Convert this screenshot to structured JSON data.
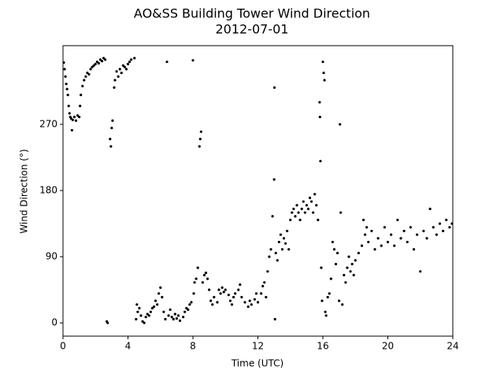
{
  "chart_data": {
    "type": "scatter",
    "title": "AO&SS Building Tower Wind Direction",
    "subtitle": "2012-07-01",
    "x_label": "Time (UTC)",
    "y_label": "Wind Direction (°)",
    "color": "#000000",
    "xlim": [
      0,
      24
    ],
    "ylim": [
      -18,
      377
    ],
    "xticks": [
      0,
      4,
      8,
      12,
      16,
      20,
      24
    ],
    "yticks": [
      0,
      90,
      180,
      270
    ],
    "x": [
      0.05,
      0.1,
      0.15,
      0.2,
      0.25,
      0.3,
      0.35,
      0.4,
      0.45,
      0.5,
      0.55,
      0.6,
      0.7,
      0.8,
      0.9,
      1.0,
      1.05,
      1.1,
      1.2,
      1.3,
      1.4,
      1.5,
      1.6,
      1.7,
      1.8,
      1.9,
      2.0,
      2.1,
      2.2,
      2.3,
      2.4,
      2.5,
      2.6,
      2.7,
      2.75,
      2.9,
      2.95,
      3.0,
      3.05,
      3.15,
      3.2,
      3.3,
      3.4,
      3.5,
      3.6,
      3.7,
      3.8,
      3.9,
      4.0,
      4.1,
      4.2,
      4.4,
      4.5,
      4.55,
      4.6,
      4.7,
      4.8,
      4.9,
      5.0,
      5.1,
      5.2,
      5.3,
      5.4,
      5.5,
      5.6,
      5.7,
      5.8,
      5.9,
      6.0,
      6.1,
      6.2,
      6.3,
      6.4,
      6.5,
      6.6,
      6.7,
      6.8,
      6.9,
      7.0,
      7.1,
      7.2,
      7.4,
      7.5,
      7.6,
      7.7,
      7.8,
      7.9,
      8.0,
      8.05,
      8.1,
      8.2,
      8.3,
      8.4,
      8.45,
      8.5,
      8.6,
      8.7,
      8.8,
      8.9,
      9.0,
      9.1,
      9.2,
      9.3,
      9.5,
      9.6,
      9.7,
      9.8,
      9.9,
      10.0,
      10.2,
      10.3,
      10.4,
      10.5,
      10.6,
      10.8,
      10.9,
      11.0,
      11.2,
      11.4,
      11.5,
      11.6,
      11.8,
      11.9,
      12.0,
      12.2,
      12.3,
      12.4,
      12.5,
      12.6,
      12.7,
      12.8,
      12.9,
      13.0,
      13.02,
      13.05,
      13.1,
      13.2,
      13.3,
      13.4,
      13.5,
      13.6,
      13.7,
      13.8,
      13.9,
      14.0,
      14.1,
      14.2,
      14.3,
      14.4,
      14.5,
      14.6,
      14.7,
      14.8,
      14.9,
      15.0,
      15.1,
      15.2,
      15.3,
      15.4,
      15.5,
      15.6,
      15.7,
      15.8,
      15.82,
      15.85,
      15.9,
      15.95,
      16.0,
      16.05,
      16.1,
      16.15,
      16.2,
      16.3,
      16.4,
      16.5,
      16.6,
      16.7,
      16.8,
      16.9,
      17.0,
      17.05,
      17.1,
      17.2,
      17.3,
      17.4,
      17.5,
      17.6,
      17.7,
      17.8,
      17.9,
      18.0,
      18.2,
      18.4,
      18.5,
      18.6,
      18.7,
      18.8,
      19.0,
      19.2,
      19.4,
      19.6,
      19.8,
      20.0,
      20.2,
      20.4,
      20.6,
      20.8,
      21.0,
      21.2,
      21.4,
      21.6,
      21.8,
      22.0,
      22.2,
      22.4,
      22.6,
      22.8,
      23.0,
      23.2,
      23.4,
      23.6,
      23.8,
      23.95
    ],
    "values": [
      354,
      345,
      335,
      325,
      318,
      310,
      295,
      285,
      280,
      278,
      262,
      276,
      280,
      275,
      282,
      280,
      295,
      310,
      322,
      330,
      335,
      340,
      338,
      345,
      348,
      350,
      352,
      355,
      353,
      358,
      356,
      360,
      358,
      2,
      0,
      250,
      240,
      265,
      275,
      320,
      330,
      342,
      335,
      345,
      340,
      350,
      348,
      345,
      352,
      355,
      358,
      360,
      5,
      25,
      15,
      20,
      10,
      2,
      0,
      8,
      12,
      10,
      15,
      20,
      22,
      30,
      25,
      40,
      48,
      35,
      15,
      5,
      355,
      10,
      18,
      8,
      5,
      12,
      6,
      10,
      3,
      8,
      15,
      20,
      18,
      25,
      28,
      357,
      40,
      55,
      60,
      75,
      240,
      250,
      260,
      55,
      65,
      68,
      60,
      45,
      30,
      25,
      35,
      28,
      45,
      40,
      48,
      42,
      45,
      38,
      30,
      25,
      35,
      40,
      45,
      52,
      35,
      28,
      22,
      30,
      25,
      32,
      40,
      28,
      40,
      50,
      55,
      35,
      70,
      90,
      100,
      145,
      195,
      320,
      5,
      95,
      85,
      110,
      120,
      100,
      115,
      108,
      125,
      100,
      140,
      150,
      155,
      145,
      160,
      150,
      140,
      155,
      165,
      150,
      160,
      155,
      170,
      165,
      150,
      175,
      160,
      140,
      300,
      280,
      220,
      75,
      30,
      355,
      340,
      330,
      15,
      10,
      35,
      40,
      60,
      110,
      100,
      80,
      95,
      30,
      270,
      150,
      25,
      65,
      55,
      75,
      90,
      70,
      80,
      65,
      85,
      95,
      105,
      140,
      120,
      130,
      110,
      125,
      100,
      115,
      105,
      130,
      110,
      120,
      105,
      140,
      115,
      125,
      110,
      130,
      100,
      120,
      70,
      125,
      115,
      155,
      130,
      120,
      135,
      125,
      140,
      130,
      135
    ]
  }
}
